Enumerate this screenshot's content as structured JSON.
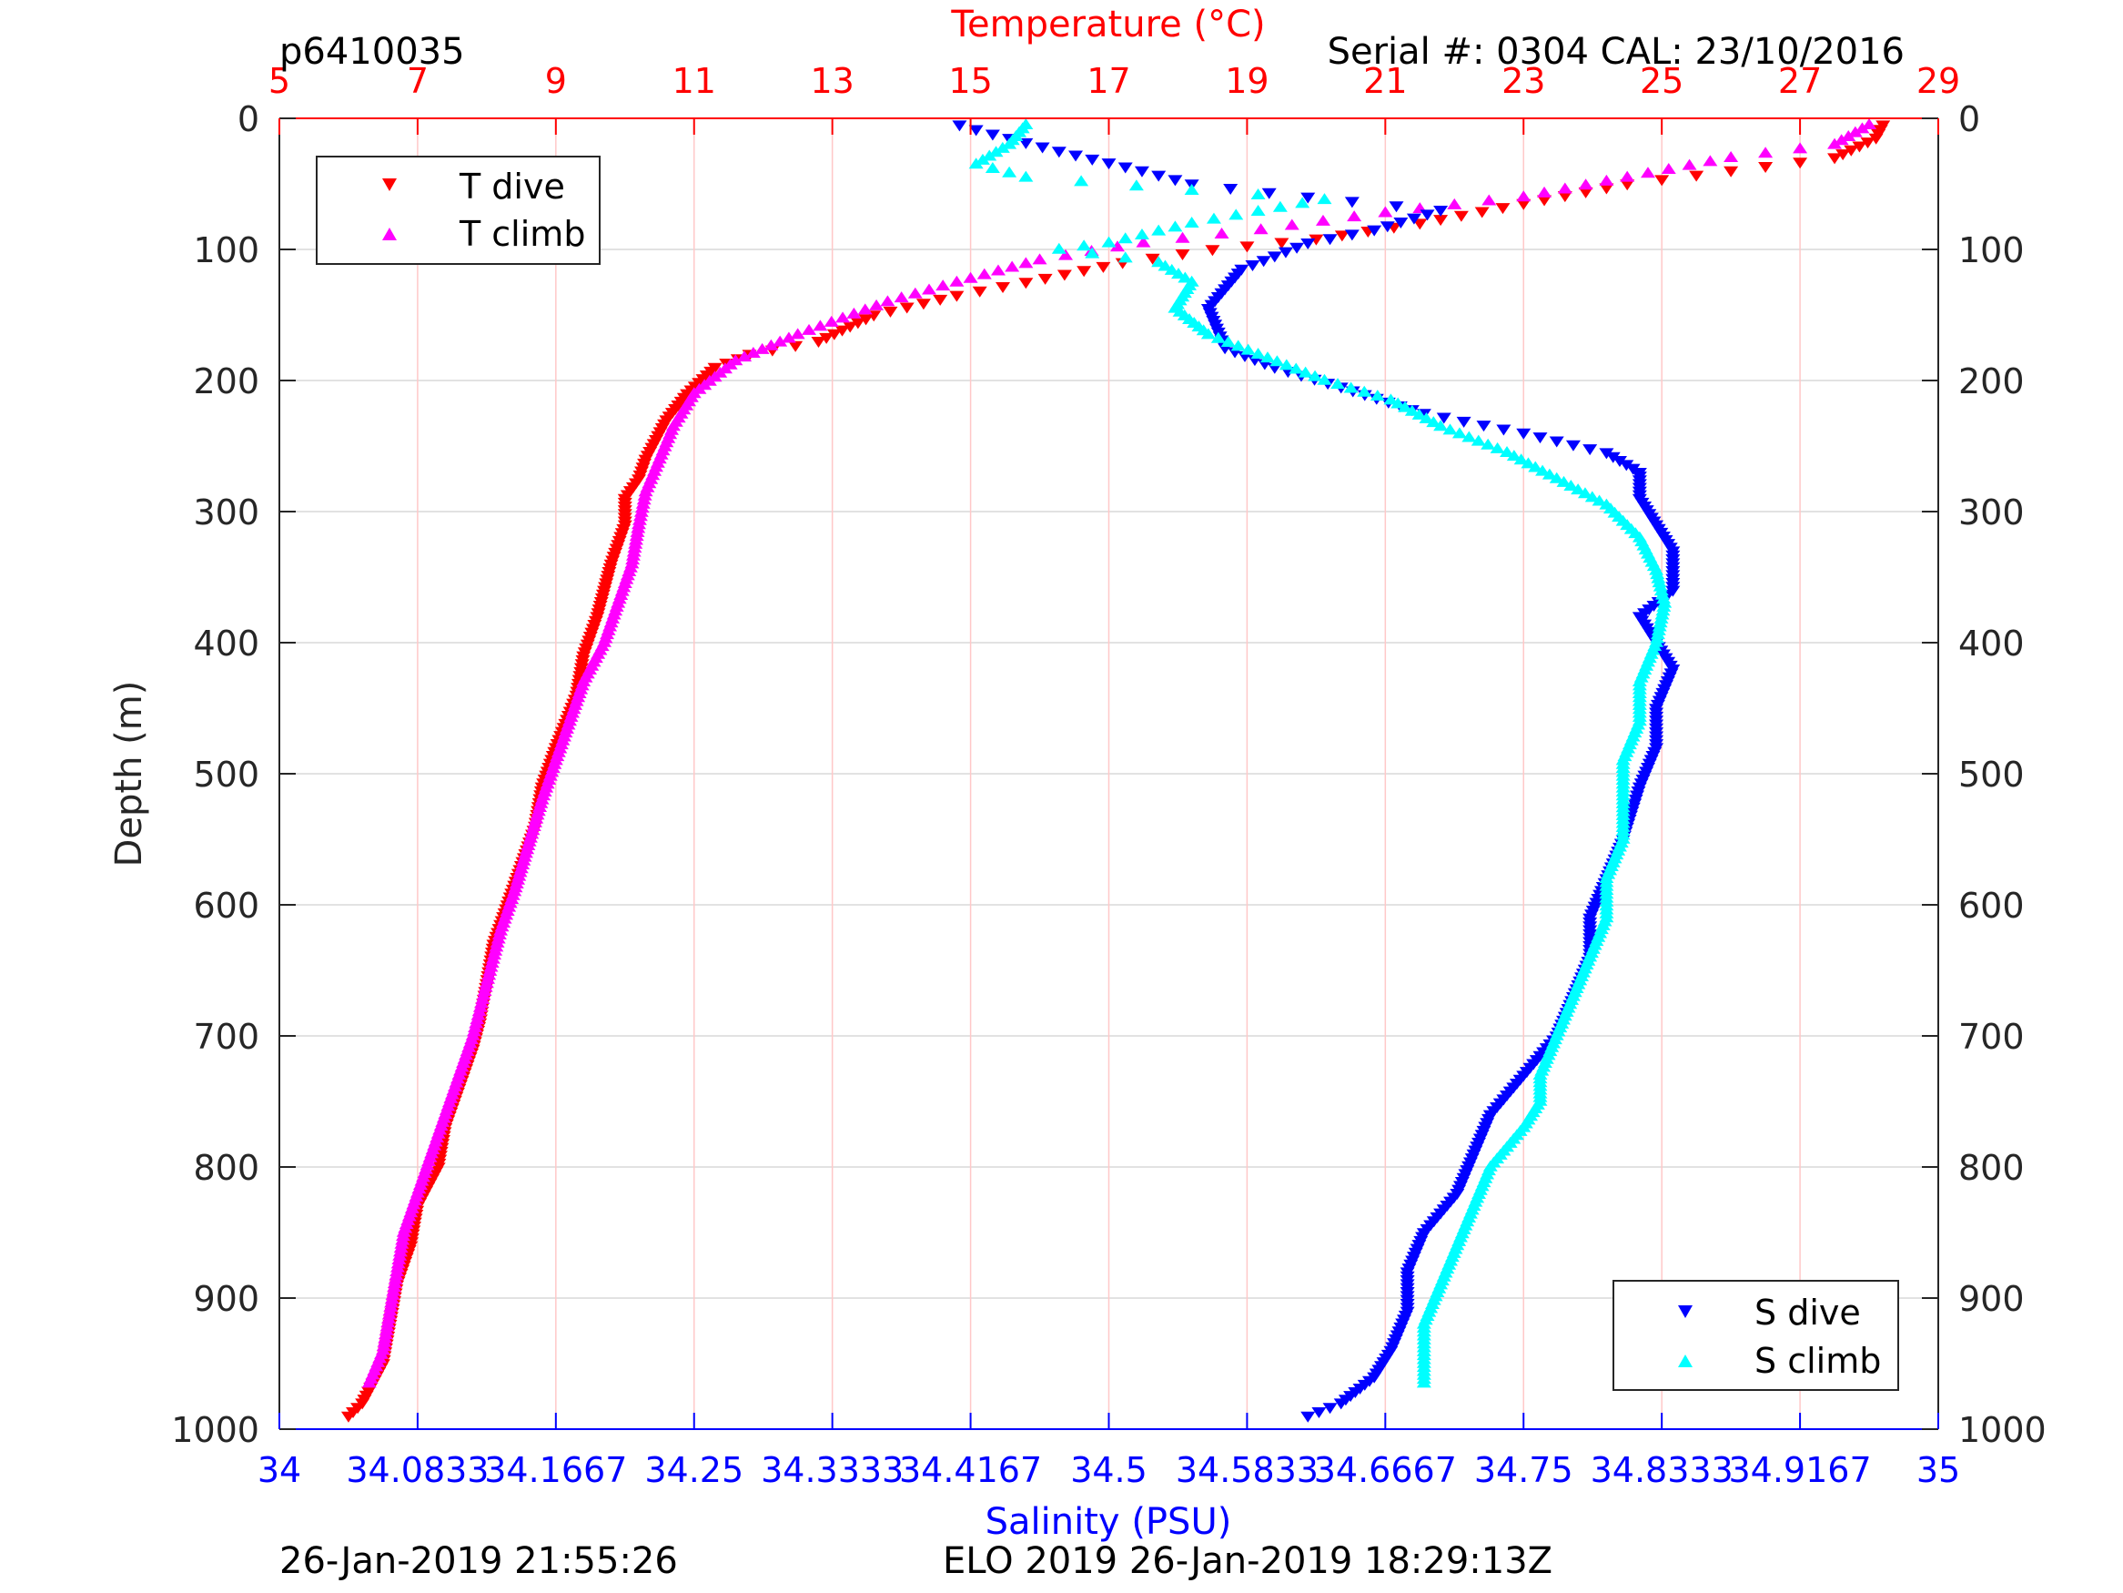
{
  "header": {
    "profile_id": "p6410035",
    "serial": "Serial #: 0304  CAL: 23/10/2016"
  },
  "footer": {
    "left_timestamp": "26-Jan-2019 21:55:26",
    "center_mission": "ELO 2019 26-Jan-2019 18:29:13Z"
  },
  "colors": {
    "temperature_axis": "#ff0000",
    "salinity_axis": "#0000ff",
    "t_dive": "#ff0000",
    "t_climb": "#ff00ff",
    "s_dive": "#0000ff",
    "s_climb": "#00ffff"
  },
  "chart_data": {
    "type": "scatter",
    "y_axis": {
      "label": "Depth (m)",
      "range": [
        0,
        1000
      ],
      "reversed": true,
      "ticks": [
        "0",
        "100",
        "200",
        "300",
        "400",
        "500",
        "600",
        "700",
        "800",
        "900",
        "1000"
      ]
    },
    "top_axis": {
      "label": "Temperature (°C)",
      "range": [
        5,
        29
      ],
      "ticks": [
        "5",
        "7",
        "9",
        "11",
        "13",
        "15",
        "17",
        "19",
        "21",
        "23",
        "25",
        "27",
        "29"
      ]
    },
    "bottom_axis": {
      "label": "Salinity (PSU)",
      "range": [
        34,
        35
      ],
      "ticks": [
        "34",
        "34.0833",
        "34.1667",
        "34.25",
        "34.3333",
        "34.4167",
        "34.5",
        "34.5833",
        "34.6667",
        "34.75",
        "34.8333",
        "34.9167",
        "35"
      ]
    },
    "grid": true,
    "legends": [
      {
        "position": "top-left",
        "entries": [
          "T dive",
          "T climb"
        ]
      },
      {
        "position": "bottom-right",
        "entries": [
          "S dive",
          "S climb"
        ]
      }
    ],
    "series": [
      {
        "name": "T dive",
        "axis": "temperature",
        "marker": "triangle-down",
        "points": [
          [
            28.2,
            5
          ],
          [
            28.1,
            15
          ],
          [
            27.5,
            30
          ],
          [
            26,
            40
          ],
          [
            24.5,
            50
          ],
          [
            23,
            65
          ],
          [
            21.5,
            80
          ],
          [
            20,
            92
          ],
          [
            18.5,
            100
          ],
          [
            17.2,
            110
          ],
          [
            15.8,
            125
          ],
          [
            14.8,
            135
          ],
          [
            13.6,
            150
          ],
          [
            12.8,
            170
          ],
          [
            11.8,
            180
          ],
          [
            11.3,
            190
          ],
          [
            10.9,
            210
          ],
          [
            10.6,
            230
          ],
          [
            10.3,
            260
          ],
          [
            10.2,
            275
          ],
          [
            10.0,
            290
          ],
          [
            10.0,
            310
          ],
          [
            9.8,
            340
          ],
          [
            9.7,
            360
          ],
          [
            9.6,
            380
          ],
          [
            9.4,
            410
          ],
          [
            9.3,
            440
          ],
          [
            9.0,
            480
          ],
          [
            8.8,
            510
          ],
          [
            8.7,
            540
          ],
          [
            8.5,
            570
          ],
          [
            8.3,
            600
          ],
          [
            8.1,
            630
          ],
          [
            8.0,
            660
          ],
          [
            7.9,
            690
          ],
          [
            7.8,
            710
          ],
          [
            7.6,
            740
          ],
          [
            7.4,
            770
          ],
          [
            7.3,
            800
          ],
          [
            7.0,
            830
          ],
          [
            6.9,
            860
          ],
          [
            6.7,
            890
          ],
          [
            6.6,
            920
          ],
          [
            6.5,
            950
          ],
          [
            6.2,
            980
          ],
          [
            6.0,
            990
          ]
        ]
      },
      {
        "name": "T climb",
        "axis": "temperature",
        "marker": "triangle-up",
        "points": [
          [
            28.0,
            5
          ],
          [
            27.5,
            20
          ],
          [
            26,
            30
          ],
          [
            24.5,
            45
          ],
          [
            23,
            60
          ],
          [
            21,
            72
          ],
          [
            19.2,
            85
          ],
          [
            17.5,
            95
          ],
          [
            16.0,
            108
          ],
          [
            14.8,
            125
          ],
          [
            13.8,
            140
          ],
          [
            12.5,
            165
          ],
          [
            11.6,
            185
          ],
          [
            11.0,
            210
          ],
          [
            10.7,
            235
          ],
          [
            10.5,
            260
          ],
          [
            10.3,
            285
          ],
          [
            10.2,
            310
          ],
          [
            10.1,
            340
          ],
          [
            9.9,
            370
          ],
          [
            9.7,
            400
          ],
          [
            9.4,
            430
          ],
          [
            9.2,
            460
          ],
          [
            9.0,
            490
          ],
          [
            8.8,
            520
          ],
          [
            8.6,
            555
          ],
          [
            8.4,
            590
          ],
          [
            8.2,
            620
          ],
          [
            8.0,
            660
          ],
          [
            7.8,
            700
          ],
          [
            7.6,
            730
          ],
          [
            7.4,
            760
          ],
          [
            7.2,
            790
          ],
          [
            7.0,
            820
          ],
          [
            6.8,
            850
          ],
          [
            6.7,
            880
          ],
          [
            6.6,
            910
          ],
          [
            6.5,
            940
          ],
          [
            6.3,
            965
          ]
        ]
      },
      {
        "name": "S dive",
        "axis": "salinity",
        "marker": "triangle-down",
        "points": [
          [
            34.41,
            5
          ],
          [
            34.43,
            12
          ],
          [
            34.47,
            25
          ],
          [
            34.52,
            40
          ],
          [
            34.55,
            50
          ],
          [
            34.62,
            60
          ],
          [
            34.7,
            70
          ],
          [
            34.66,
            85
          ],
          [
            34.62,
            95
          ],
          [
            34.6,
            105
          ],
          [
            34.58,
            115
          ],
          [
            34.57,
            130
          ],
          [
            34.56,
            145
          ],
          [
            34.565,
            160
          ],
          [
            34.57,
            175
          ],
          [
            34.6,
            190
          ],
          [
            34.64,
            205
          ],
          [
            34.69,
            225
          ],
          [
            34.75,
            240
          ],
          [
            34.8,
            255
          ],
          [
            34.82,
            270
          ],
          [
            34.82,
            290
          ],
          [
            34.83,
            310
          ],
          [
            34.84,
            330
          ],
          [
            34.84,
            360
          ],
          [
            34.82,
            380
          ],
          [
            34.83,
            400
          ],
          [
            34.84,
            420
          ],
          [
            34.83,
            450
          ],
          [
            34.83,
            480
          ],
          [
            34.82,
            510
          ],
          [
            34.81,
            550
          ],
          [
            34.8,
            580
          ],
          [
            34.79,
            610
          ],
          [
            34.79,
            640
          ],
          [
            34.78,
            670
          ],
          [
            34.77,
            700
          ],
          [
            34.75,
            730
          ],
          [
            34.73,
            760
          ],
          [
            34.72,
            790
          ],
          [
            34.71,
            820
          ],
          [
            34.69,
            850
          ],
          [
            34.68,
            880
          ],
          [
            34.68,
            910
          ],
          [
            34.67,
            940
          ],
          [
            34.66,
            960
          ],
          [
            34.64,
            980
          ],
          [
            34.62,
            990
          ]
        ]
      },
      {
        "name": "S climb",
        "axis": "salinity",
        "marker": "triangle-up",
        "points": [
          [
            34.45,
            5
          ],
          [
            34.44,
            20
          ],
          [
            34.42,
            35
          ],
          [
            34.45,
            45
          ],
          [
            34.55,
            55
          ],
          [
            34.63,
            62
          ],
          [
            34.55,
            80
          ],
          [
            34.5,
            95
          ],
          [
            34.47,
            100
          ],
          [
            34.53,
            110
          ],
          [
            34.55,
            125
          ],
          [
            34.54,
            145
          ],
          [
            34.56,
            165
          ],
          [
            34.59,
            180
          ],
          [
            34.63,
            200
          ],
          [
            34.67,
            215
          ],
          [
            34.7,
            235
          ],
          [
            34.74,
            255
          ],
          [
            34.77,
            275
          ],
          [
            34.8,
            295
          ],
          [
            34.82,
            320
          ],
          [
            34.83,
            345
          ],
          [
            34.835,
            370
          ],
          [
            34.83,
            400
          ],
          [
            34.82,
            430
          ],
          [
            34.82,
            460
          ],
          [
            34.81,
            490
          ],
          [
            34.81,
            520
          ],
          [
            34.81,
            550
          ],
          [
            34.8,
            580
          ],
          [
            34.8,
            610
          ],
          [
            34.79,
            640
          ],
          [
            34.78,
            670
          ],
          [
            34.77,
            700
          ],
          [
            34.76,
            730
          ],
          [
            34.76,
            750
          ],
          [
            34.75,
            770
          ],
          [
            34.73,
            800
          ],
          [
            34.72,
            830
          ],
          [
            34.71,
            860
          ],
          [
            34.7,
            890
          ],
          [
            34.69,
            920
          ],
          [
            34.69,
            950
          ],
          [
            34.69,
            965
          ]
        ]
      }
    ]
  }
}
